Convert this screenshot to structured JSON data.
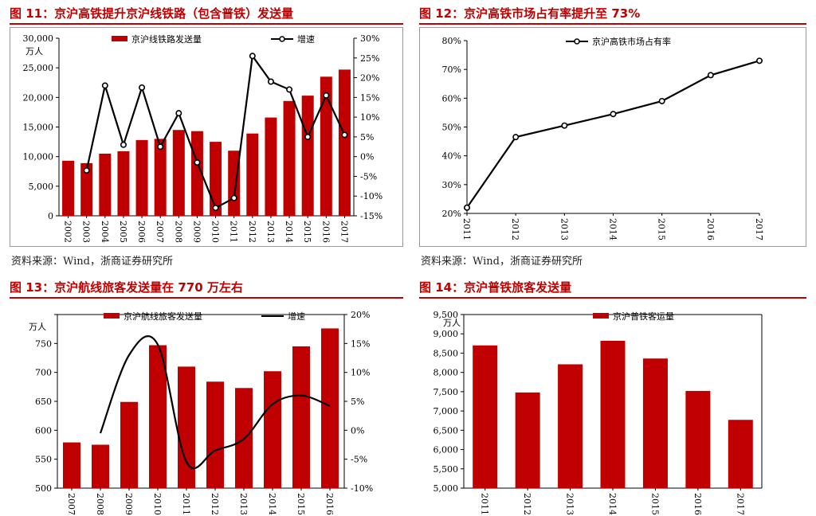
{
  "colors": {
    "accent": "#c00000",
    "bar": "#c00000",
    "line": "#000000"
  },
  "charts": [
    {
      "title": "图 11：京沪高铁提升京沪线铁路（包含普铁）发送量",
      "source": "资料来源：Wind，浙商证券研究所",
      "chart_data": {
        "type": "bar",
        "categories": [
          "2002",
          "2003",
          "2004",
          "2005",
          "2006",
          "2007",
          "2008",
          "2009",
          "2010",
          "2011",
          "2012",
          "2013",
          "2014",
          "2015",
          "2016",
          "2017"
        ],
        "series": [
          {
            "name": "京沪线铁路发送量",
            "type": "bar",
            "axis": "left",
            "values": [
              9300,
              8900,
              10500,
              10900,
              12800,
              13000,
              14500,
              14300,
              12500,
              11000,
              13900,
              16600,
              19400,
              20300,
              23500,
              24700
            ]
          },
          {
            "name": "增速",
            "type": "line",
            "axis": "right",
            "values": [
              null,
              -3.5,
              18,
              3,
              17.5,
              2.5,
              11,
              -1.5,
              -13,
              -10.5,
              25.5,
              19,
              17,
              5,
              15.5,
              5.5
            ]
          }
        ],
        "ylabel": "万人",
        "ylim": [
          0,
          30000
        ],
        "yticks": [
          0,
          5000,
          10000,
          15000,
          20000,
          25000,
          30000
        ],
        "ytick_labels": [
          "0",
          "5,000",
          "10,000",
          "15,000",
          "20,000",
          "25,000",
          "30,000"
        ],
        "y2lim": [
          -15,
          30
        ],
        "y2ticks": [
          -15,
          -10,
          -5,
          0,
          5,
          10,
          15,
          20,
          25,
          30
        ],
        "y2tick_labels": [
          "-15%",
          "-10%",
          "-5%",
          "0%",
          "5%",
          "10%",
          "15%",
          "20%",
          "25%",
          "30%"
        ],
        "legend": "top",
        "grid": false
      }
    },
    {
      "title": "图 12：京沪高铁市场占有率提升至 73%",
      "source": "资料来源：Wind，浙商证券研究所",
      "chart_data": {
        "type": "line",
        "categories": [
          "2011",
          "2012",
          "2013",
          "2014",
          "2015",
          "2016",
          "2017"
        ],
        "series": [
          {
            "name": "京沪高铁市场占有率",
            "type": "line",
            "axis": "left",
            "values": [
              22,
              46.5,
              50.5,
              54.5,
              59,
              68,
              73
            ]
          }
        ],
        "ylim": [
          20,
          80
        ],
        "yticks": [
          20,
          30,
          40,
          50,
          60,
          70,
          80
        ],
        "ytick_labels": [
          "20%",
          "30%",
          "40%",
          "50%",
          "60%",
          "70%",
          "80%"
        ],
        "legend": "top",
        "grid": false
      }
    },
    {
      "title": "图 13：京沪航线旅客发送量在 770 万左右",
      "chart_data": {
        "type": "bar",
        "categories": [
          "2007",
          "2008",
          "2009",
          "2010",
          "2011",
          "2012",
          "2013",
          "2014",
          "2015",
          "2016"
        ],
        "series": [
          {
            "name": "京沪航线旅客发送量",
            "type": "bar",
            "axis": "left",
            "values": [
              579,
              575,
              649,
              747,
              710,
              684,
              673,
              702,
              745,
              776
            ]
          },
          {
            "name": "增速",
            "type": "line",
            "axis": "right",
            "smooth": true,
            "values": [
              null,
              -0.5,
              13,
              14.8,
              -5.5,
              -3.5,
              -1.5,
              4.5,
              6,
              4.2
            ]
          }
        ],
        "ylabel": "万人",
        "ylim": [
          500,
          800
        ],
        "yticks": [
          500,
          550,
          600,
          650,
          700,
          750,
          800
        ],
        "ytick_labels": [
          "500",
          "550",
          "600",
          "650",
          "700",
          "750",
          ""
        ],
        "y2lim": [
          -10,
          20
        ],
        "y2ticks": [
          -10,
          -5,
          0,
          5,
          10,
          15,
          20
        ],
        "y2tick_labels": [
          "-10%",
          "-5%",
          "0%",
          "5%",
          "10%",
          "15%",
          "20%"
        ],
        "legend": "top",
        "grid": false
      }
    },
    {
      "title": "图 14：京沪普铁旅客发送量",
      "chart_data": {
        "type": "bar",
        "categories": [
          "2011",
          "2012",
          "2013",
          "2014",
          "2015",
          "2016",
          "2017"
        ],
        "series": [
          {
            "name": "京沪普铁客运量",
            "type": "bar",
            "axis": "left",
            "values": [
              8700,
              7480,
              8210,
              8820,
              8360,
              7520,
              6770
            ]
          }
        ],
        "ylabel": "万人",
        "ylim": [
          5000,
          9500
        ],
        "yticks": [
          5000,
          5500,
          6000,
          6500,
          7000,
          7500,
          8000,
          8500,
          9000,
          9500
        ],
        "ytick_labels": [
          "5,000",
          "5,500",
          "6,000",
          "6,500",
          "7,000",
          "7,500",
          "8,000",
          "8,500",
          "9,000",
          "9,500"
        ],
        "legend": "top",
        "grid": false
      }
    }
  ]
}
